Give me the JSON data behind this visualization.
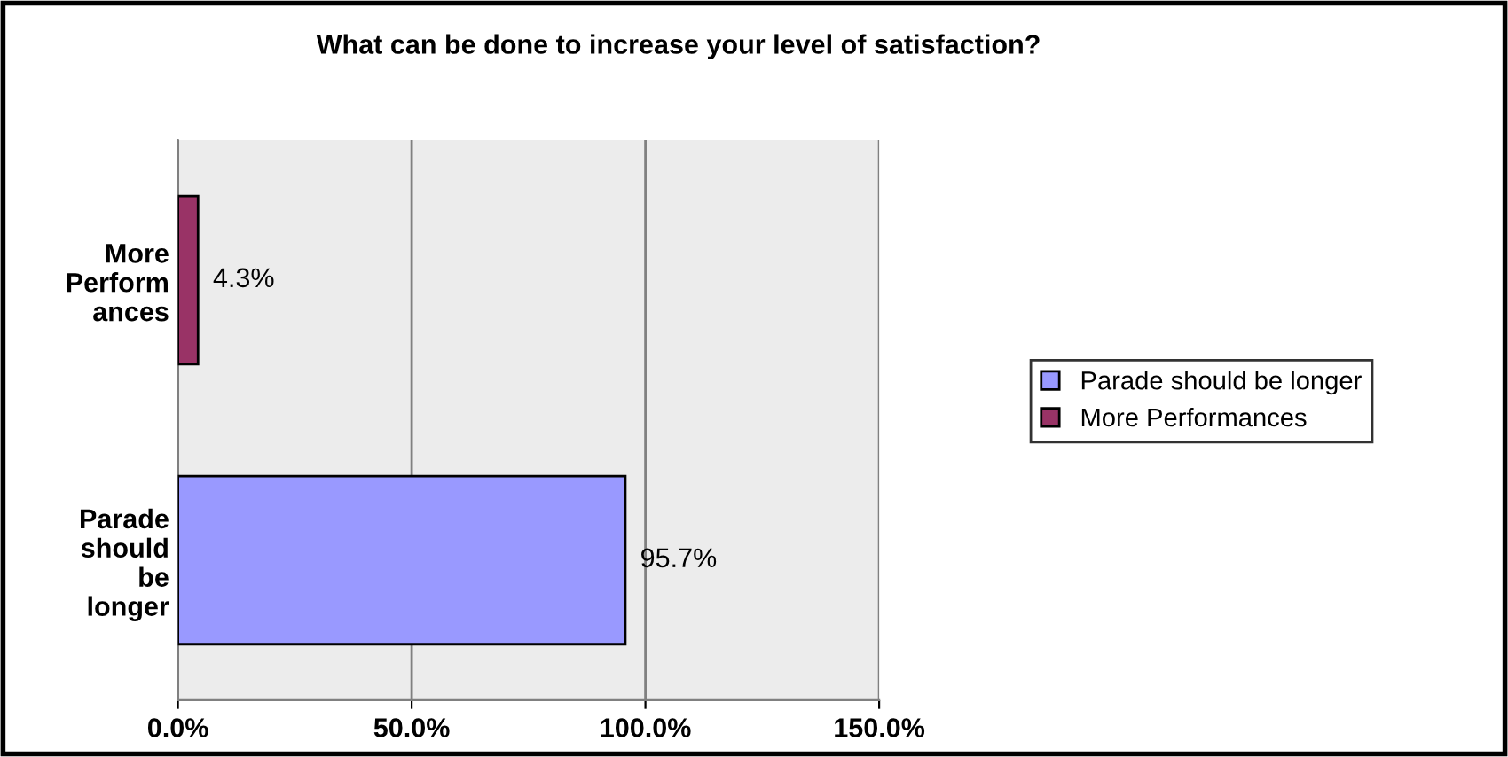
{
  "chart_data": {
    "type": "bar",
    "orientation": "horizontal",
    "title": "What can be done to increase your level of satisfaction?",
    "categories": [
      "More\nPerform\nances",
      "Parade\nshould\nbe\nlonger"
    ],
    "series": [
      {
        "name": "Parade should be longer",
        "color": "#9999ff",
        "values": [
          null,
          95.7
        ],
        "value_labels": [
          null,
          "95.7%"
        ]
      },
      {
        "name": "More Performances",
        "color": "#993366",
        "values": [
          4.3,
          null
        ],
        "value_labels": [
          "4.3%",
          null
        ]
      }
    ],
    "xlim": [
      0,
      150
    ],
    "xticks": [
      {
        "value": 0,
        "label": "0.0%"
      },
      {
        "value": 50,
        "label": "50.0%"
      },
      {
        "value": 100,
        "label": "100.0%"
      },
      {
        "value": 150,
        "label": "150.0%"
      }
    ],
    "grid": "x",
    "legend": "right"
  }
}
